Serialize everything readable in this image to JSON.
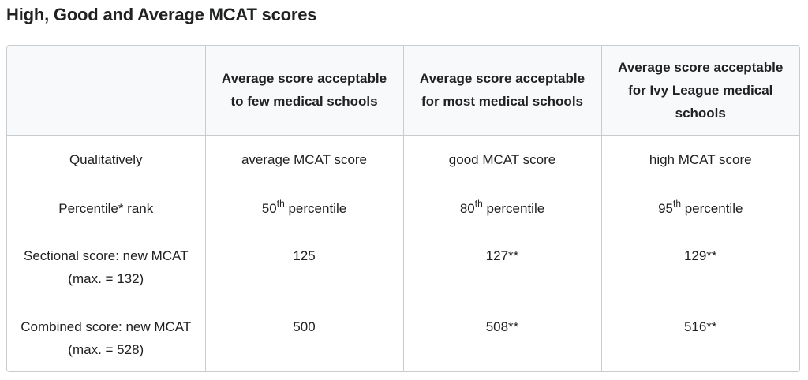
{
  "title": "High, Good and Average MCAT scores",
  "table": {
    "headers": [
      "",
      "Average score acceptable to few medical schools",
      "Average score acceptable for most medical schools",
      "Average score acceptable for Ivy League medical schools"
    ],
    "rows": [
      {
        "label": "Qualitatively",
        "cells": [
          "average MCAT score",
          "good MCAT score",
          "high MCAT score"
        ]
      },
      {
        "label": "Percentile* rank",
        "cells": [
          {
            "num": "50",
            "sup": "th",
            "rest": " percentile"
          },
          {
            "num": "80",
            "sup": "th",
            "rest": " percentile"
          },
          {
            "num": "95",
            "sup": "th",
            "rest": " percentile"
          }
        ]
      },
      {
        "label": "Sectional score: new MCAT (max. = 132)",
        "cells": [
          "125",
          "127**",
          "129**"
        ]
      },
      {
        "label": "Combined score: new MCAT (max. = 528)",
        "cells": [
          "500",
          "508**",
          "516**"
        ]
      }
    ]
  }
}
